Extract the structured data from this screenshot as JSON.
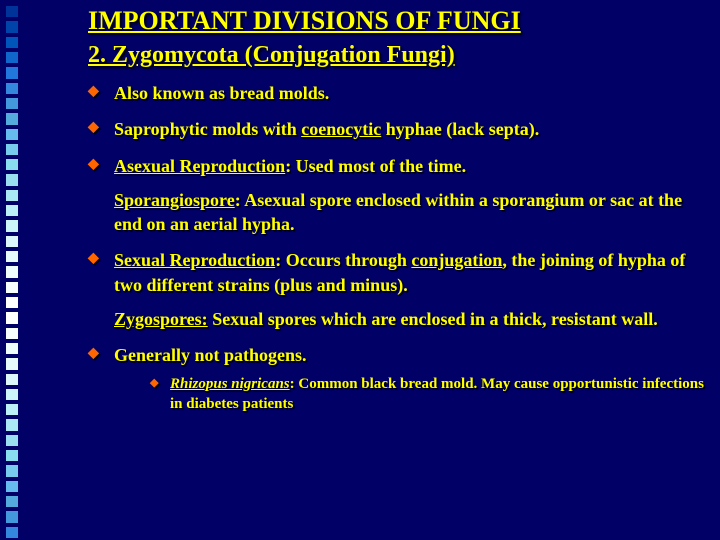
{
  "colors": {
    "background": "#000066",
    "text": "#ffff00",
    "bullet": "#ff6600",
    "shadow": "#000000",
    "side_squares": [
      "#003399",
      "#0044aa",
      "#0055bb",
      "#1166cc",
      "#2277dd",
      "#3388dd",
      "#4499dd",
      "#55aadd",
      "#66bbee",
      "#77ccee",
      "#88ddee",
      "#99dff0",
      "#aae8f5",
      "#bbf0f8",
      "#ccf5fa",
      "#ddf8fb",
      "#e8fbfc",
      "#f0fdfd",
      "#f8fefe",
      "#ffffff",
      "#ffffff",
      "#f8fefe",
      "#f0fdfd",
      "#e8fbfc",
      "#ddf8fb",
      "#ccf5fa",
      "#bbf0f8",
      "#aae8f5",
      "#99dff0",
      "#88ddee",
      "#77ccee",
      "#66bbee",
      "#55aadd",
      "#4499dd",
      "#3388dd"
    ]
  },
  "title": "IMPORTANT DIVISIONS OF FUNGI",
  "subtitle": "2. Zygomycota (Conjugation Fungi)",
  "bullets": {
    "b1": "Also known as bread molds.",
    "b2_pre": "Saprophytic molds with ",
    "b2_u": "coenocytic",
    "b2_post": " hyphae (lack septa).",
    "b3_u": "Asexual Reproduction",
    "b3_post": ": Used most of the time.",
    "b3b_u": "Sporangiospore",
    "b3b_post": ": Asexual spore enclosed within a sporangium or sac at the end on an aerial hypha.",
    "b4_u": "Sexual Reproduction",
    "b4_mid": ": Occurs through ",
    "b4_u2": "conjugation",
    "b4_post": ", the joining of hypha of two different strains (plus and minus).",
    "b4b_u": "Zygospores:",
    "b4b_post": " Sexual spores which are enclosed in a thick, resistant wall.",
    "b5": " Generally not pathogens.",
    "sub_i": "Rhizopus nigricans",
    "sub_post": ": Common black bread mold.  May cause opportunistic infections in diabetes patients"
  }
}
